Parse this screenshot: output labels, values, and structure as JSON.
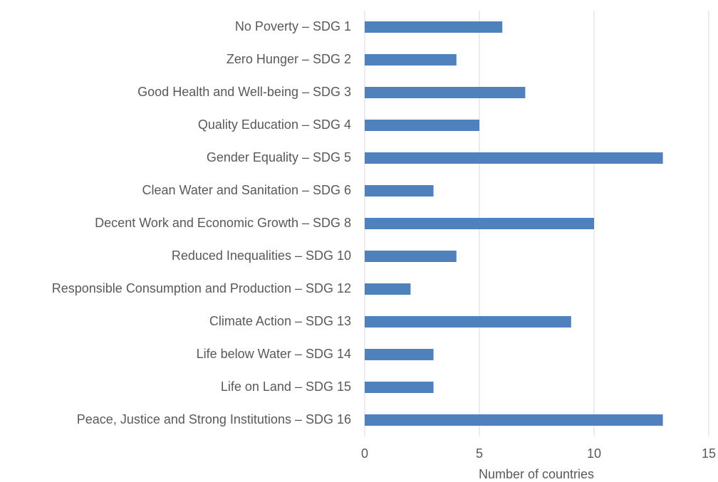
{
  "chart_data": {
    "type": "bar",
    "orientation": "horizontal",
    "x_label": "Number of countries",
    "categories": [
      "No Poverty – SDG 1",
      "Zero Hunger – SDG 2",
      "Good Health and Well-being – SDG 3",
      "Quality Education – SDG 4",
      "Gender Equality – SDG 5",
      "Clean Water and Sanitation – SDG 6",
      "Decent Work and Economic Growth – SDG 8",
      "Reduced Inequalities – SDG 10",
      "Responsible Consumption and Production – SDG 12",
      "Climate Action – SDG 13",
      "Life below Water – SDG 14",
      "Life on Land – SDG 15",
      "Peace, Justice and Strong Institutions – SDG 16"
    ],
    "values": [
      6,
      4,
      7,
      5,
      13,
      3,
      10,
      4,
      2,
      9,
      3,
      3,
      13
    ],
    "color": "#4f81bd",
    "xlim": [
      0,
      15
    ],
    "xticks": [
      0,
      5,
      10,
      15
    ],
    "grid": true
  }
}
